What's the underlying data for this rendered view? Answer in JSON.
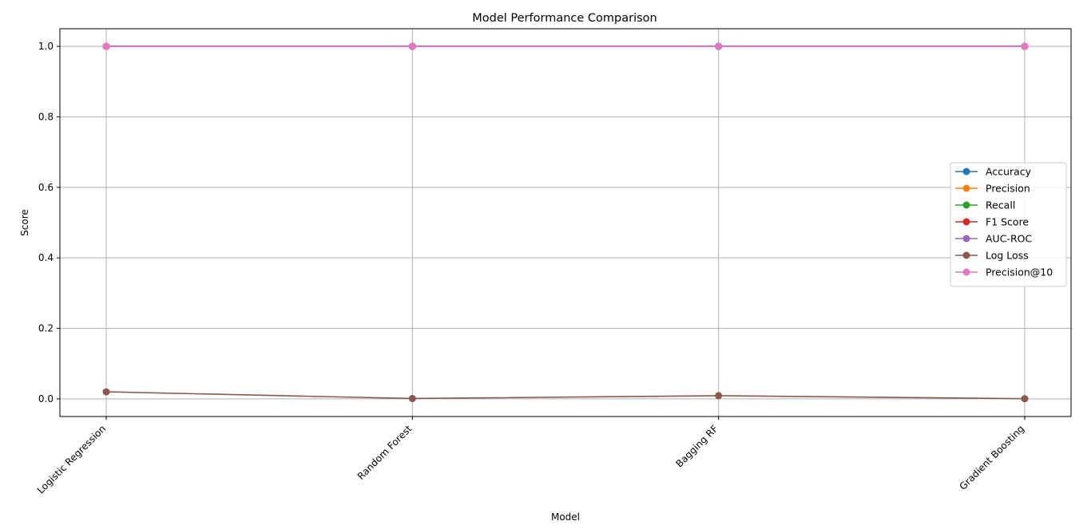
{
  "chart_data": {
    "type": "line",
    "title": "Model Performance Comparison",
    "xlabel": "Model",
    "ylabel": "Score",
    "categories": [
      "Logistic Regression",
      "Random Forest",
      "Bagging RF",
      "Gradient Boosting"
    ],
    "ylim": [
      -0.05,
      1.05
    ],
    "yticks": [
      "0.0",
      "0.2",
      "0.4",
      "0.6",
      "0.8",
      "1.0"
    ],
    "grid": true,
    "legend_position": "center-right",
    "series": [
      {
        "name": "Accuracy",
        "color": "#1f77b4",
        "values": [
          1.0,
          1.0,
          1.0,
          1.0
        ]
      },
      {
        "name": "Precision",
        "color": "#ff7f0e",
        "values": [
          1.0,
          1.0,
          1.0,
          1.0
        ]
      },
      {
        "name": "Recall",
        "color": "#2ca02c",
        "values": [
          1.0,
          1.0,
          1.0,
          1.0
        ]
      },
      {
        "name": "F1 Score",
        "color": "#d62728",
        "values": [
          1.0,
          1.0,
          1.0,
          1.0
        ]
      },
      {
        "name": "AUC-ROC",
        "color": "#9467bd",
        "values": [
          1.0,
          1.0,
          1.0,
          1.0
        ]
      },
      {
        "name": "Log Loss",
        "color": "#8c564b",
        "values": [
          0.02,
          0.001,
          0.009,
          0.0005
        ]
      },
      {
        "name": "Precision@10",
        "color": "#e377c2",
        "values": [
          1.0,
          1.0,
          1.0,
          1.0
        ]
      }
    ]
  }
}
